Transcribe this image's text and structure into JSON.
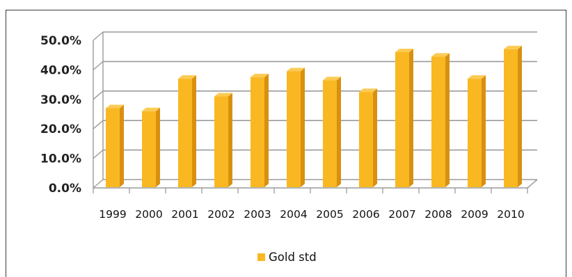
{
  "chart_data": {
    "type": "bar",
    "categories": [
      "1999",
      "2000",
      "2001",
      "2002",
      "2003",
      "2004",
      "2005",
      "2006",
      "2007",
      "2008",
      "2009",
      "2010"
    ],
    "series": [
      {
        "name": "Gold std",
        "values": [
          27,
          26,
          37,
          31,
          37.5,
          39.5,
          36.5,
          32.5,
          46,
          44.5,
          37,
          47
        ],
        "color": "#F9B822"
      }
    ],
    "yticks": [
      "0.0%",
      "10.0%",
      "20.0%",
      "30.0%",
      "40.0%",
      "50.0%"
    ],
    "ylim": [
      0,
      50
    ],
    "grid": true,
    "legend_position": "bottom",
    "style": "3d-column"
  }
}
